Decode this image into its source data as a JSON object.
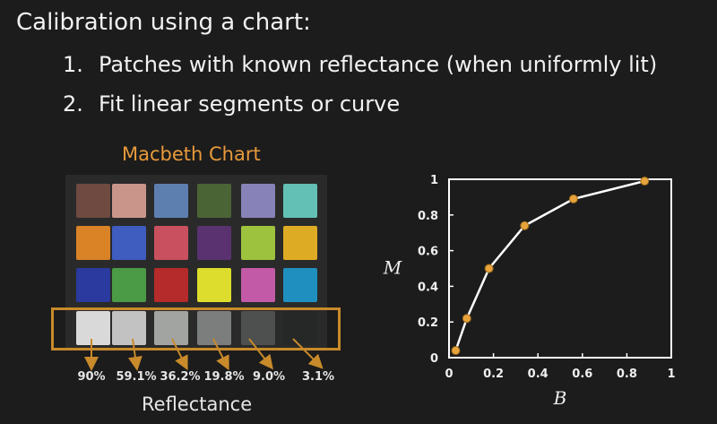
{
  "slide": {
    "title": "Calibration using a chart:",
    "bullets": [
      {
        "num": "1.",
        "text": "Patches with known reflectance (when uniformly lit)"
      },
      {
        "num": "2.",
        "text": "Fit linear segments or curve"
      }
    ]
  },
  "macbeth": {
    "heading": "Macbeth Chart",
    "rows": [
      [
        "#6e4a40",
        "#c9958a",
        "#5d7fb0",
        "#4a6436",
        "#8782b8",
        "#63c0b5"
      ],
      [
        "#d98326",
        "#3f5cbf",
        "#c9505e",
        "#5a3270",
        "#9dc23e",
        "#deab24"
      ],
      [
        "#2a3a9e",
        "#4b9a45",
        "#b52a2a",
        "#dddd2e",
        "#c35aa8",
        "#1f8fbf"
      ],
      [
        "#d9d9d9",
        "#c2c2c2",
        "#a2a4a2",
        "#7c7e7e",
        "#4e5050",
        "#262828"
      ]
    ],
    "reflectances": [
      "90%",
      "59.1%",
      "36.2%",
      "19.8%",
      "9.0%",
      "3.1%"
    ],
    "reflectance_label": "Reflectance",
    "highlight_color": "#c88a2a"
  },
  "chart_data": {
    "type": "line",
    "x": [
      0.03,
      0.08,
      0.18,
      0.34,
      0.56,
      0.88
    ],
    "y": [
      0.04,
      0.22,
      0.5,
      0.74,
      0.89,
      0.99
    ],
    "xlabel": "B",
    "ylabel": "M",
    "xlim": [
      0,
      1
    ],
    "ylim": [
      0,
      1
    ],
    "xticks": [
      "0",
      "0.2",
      "0.4",
      "0.6",
      "0.8",
      "1"
    ],
    "yticks": [
      "0",
      "0.2",
      "0.4",
      "0.6",
      "0.8",
      "1"
    ],
    "grid": false,
    "line_color": "#ffffff",
    "marker_color": "#e8a33c"
  }
}
